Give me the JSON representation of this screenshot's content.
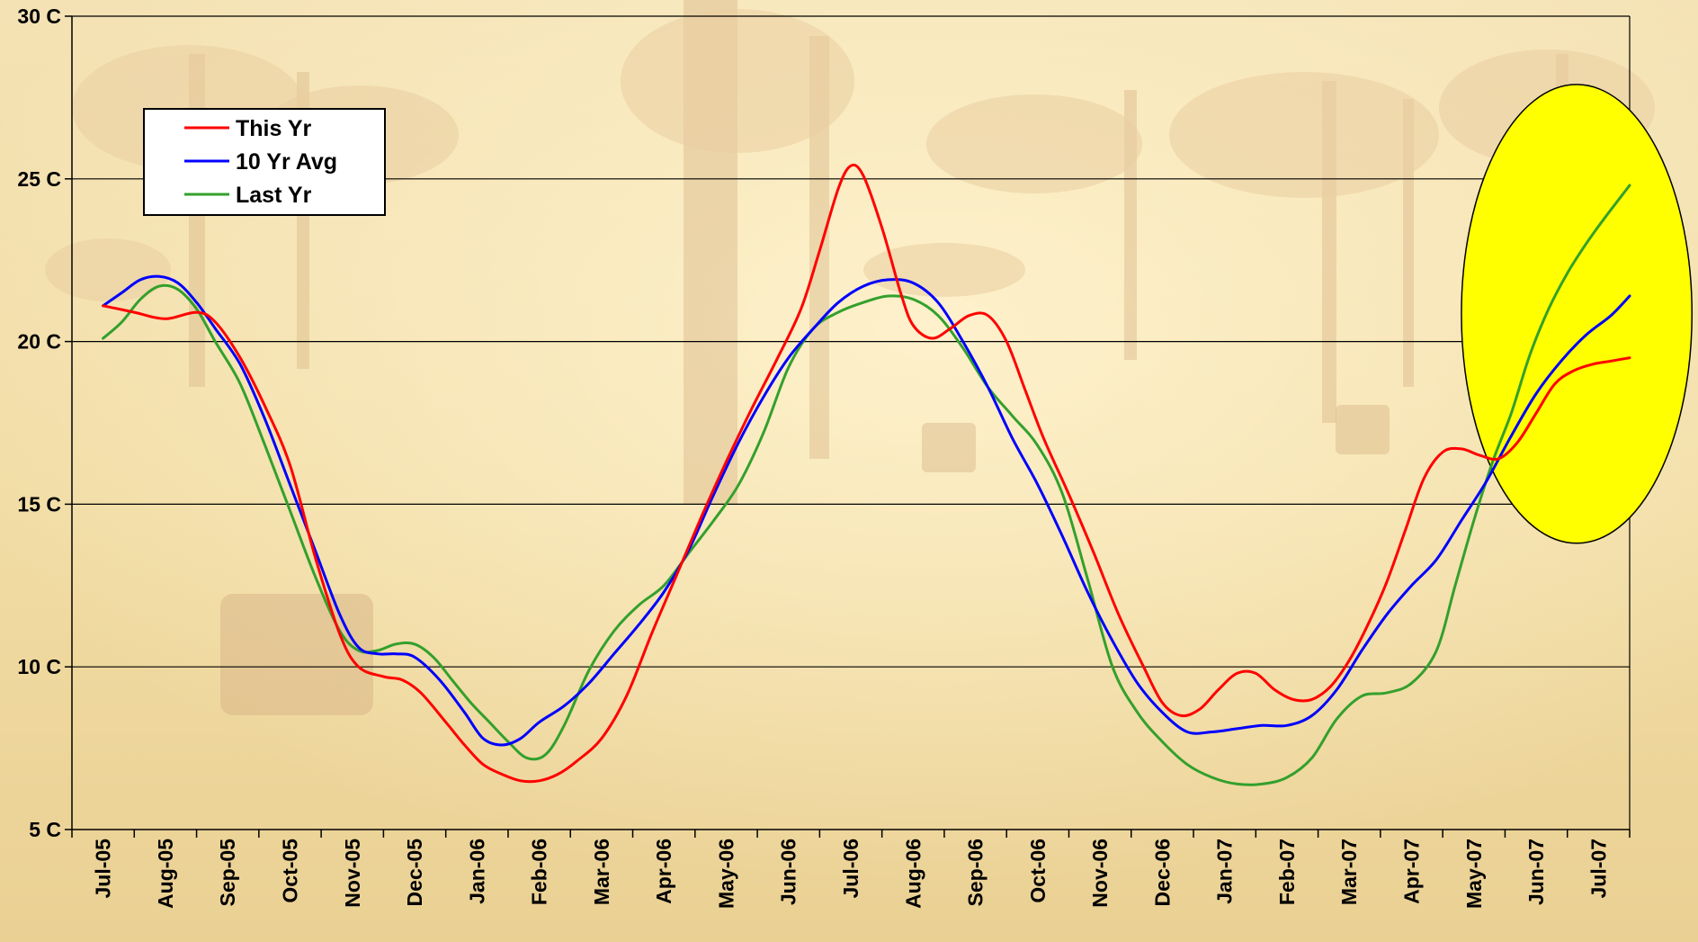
{
  "chart_data": {
    "type": "line",
    "title": "",
    "xlabel": "",
    "ylabel": "",
    "ylim": [
      5,
      30
    ],
    "y_tick_labels": [
      "5 C",
      "10 C",
      "15 C",
      "20 C",
      "25 C",
      "30 C"
    ],
    "y_tick_values": [
      5,
      10,
      15,
      20,
      25,
      30
    ],
    "categories": [
      "Jul-05",
      "Aug-05",
      "Sep-05",
      "Oct-05",
      "Nov-05",
      "Dec-05",
      "Jan-06",
      "Feb-06",
      "Mar-06",
      "Apr-06",
      "May-06",
      "Jun-06",
      "Jul-06",
      "Aug-06",
      "Sep-06",
      "Oct-06",
      "Nov-06",
      "Dec-06",
      "Jan-07",
      "Feb-07",
      "Mar-07",
      "Apr-07",
      "May-07",
      "Jun-07",
      "Jul-07"
    ],
    "grid": "horizontal",
    "legend_position": "top-left",
    "series": [
      {
        "name": "This Yr",
        "color": "#ff0000",
        "points": [
          [
            0,
            21.1
          ],
          [
            0.5,
            20.9
          ],
          [
            1,
            20.7
          ],
          [
            1.5,
            20.9
          ],
          [
            1.8,
            20.6
          ],
          [
            2.2,
            19.5
          ],
          [
            2.6,
            18.0
          ],
          [
            3,
            16.2
          ],
          [
            3.4,
            13.4
          ],
          [
            3.8,
            11.0
          ],
          [
            4.1,
            10.0
          ],
          [
            4.5,
            9.7
          ],
          [
            4.8,
            9.6
          ],
          [
            5.1,
            9.2
          ],
          [
            5.5,
            8.3
          ],
          [
            5.8,
            7.6
          ],
          [
            6.1,
            7.0
          ],
          [
            6.4,
            6.7
          ],
          [
            6.7,
            6.5
          ],
          [
            7.0,
            6.5
          ],
          [
            7.3,
            6.7
          ],
          [
            7.6,
            7.1
          ],
          [
            8.0,
            7.8
          ],
          [
            8.4,
            9.1
          ],
          [
            8.8,
            11.0
          ],
          [
            9.2,
            12.8
          ],
          [
            9.6,
            14.6
          ],
          [
            10.0,
            16.3
          ],
          [
            10.4,
            17.9
          ],
          [
            10.8,
            19.4
          ],
          [
            11.2,
            21.0
          ],
          [
            11.5,
            22.8
          ],
          [
            11.8,
            24.7
          ],
          [
            12.0,
            25.4
          ],
          [
            12.2,
            25.1
          ],
          [
            12.5,
            23.5
          ],
          [
            12.8,
            21.5
          ],
          [
            13.0,
            20.5
          ],
          [
            13.3,
            20.1
          ],
          [
            13.6,
            20.4
          ],
          [
            13.9,
            20.8
          ],
          [
            14.2,
            20.8
          ],
          [
            14.5,
            20.0
          ],
          [
            14.8,
            18.5
          ],
          [
            15.1,
            17.0
          ],
          [
            15.5,
            15.3
          ],
          [
            15.9,
            13.5
          ],
          [
            16.3,
            11.6
          ],
          [
            16.7,
            10.0
          ],
          [
            17.0,
            8.9
          ],
          [
            17.3,
            8.5
          ],
          [
            17.6,
            8.7
          ],
          [
            17.9,
            9.3
          ],
          [
            18.2,
            9.8
          ],
          [
            18.5,
            9.8
          ],
          [
            18.8,
            9.3
          ],
          [
            19.1,
            9.0
          ],
          [
            19.4,
            9.0
          ],
          [
            19.7,
            9.4
          ],
          [
            20.0,
            10.2
          ],
          [
            20.3,
            11.3
          ],
          [
            20.6,
            12.6
          ],
          [
            20.9,
            14.2
          ],
          [
            21.2,
            15.8
          ],
          [
            21.5,
            16.6
          ],
          [
            21.8,
            16.7
          ],
          [
            22.1,
            16.5
          ],
          [
            22.4,
            16.4
          ],
          [
            22.7,
            16.9
          ],
          [
            23.0,
            17.8
          ],
          [
            23.3,
            18.7
          ],
          [
            23.6,
            19.1
          ],
          [
            23.9,
            19.3
          ],
          [
            24.2,
            19.4
          ],
          [
            24.5,
            19.5
          ]
        ]
      },
      {
        "name": "10 Yr Avg",
        "color": "#0000ff",
        "points": [
          [
            0,
            21.1
          ],
          [
            0.3,
            21.5
          ],
          [
            0.6,
            21.9
          ],
          [
            0.9,
            22.0
          ],
          [
            1.2,
            21.8
          ],
          [
            1.5,
            21.2
          ],
          [
            1.8,
            20.4
          ],
          [
            2.2,
            19.3
          ],
          [
            2.6,
            17.6
          ],
          [
            3,
            15.6
          ],
          [
            3.4,
            13.6
          ],
          [
            3.8,
            11.6
          ],
          [
            4.1,
            10.6
          ],
          [
            4.4,
            10.4
          ],
          [
            4.7,
            10.4
          ],
          [
            5.0,
            10.3
          ],
          [
            5.4,
            9.6
          ],
          [
            5.8,
            8.6
          ],
          [
            6.1,
            7.8
          ],
          [
            6.4,
            7.6
          ],
          [
            6.7,
            7.8
          ],
          [
            7.0,
            8.3
          ],
          [
            7.4,
            8.8
          ],
          [
            7.8,
            9.5
          ],
          [
            8.2,
            10.4
          ],
          [
            8.6,
            11.3
          ],
          [
            9.0,
            12.3
          ],
          [
            9.4,
            13.6
          ],
          [
            9.8,
            15.3
          ],
          [
            10.2,
            16.9
          ],
          [
            10.6,
            18.3
          ],
          [
            11.0,
            19.5
          ],
          [
            11.4,
            20.4
          ],
          [
            11.8,
            21.2
          ],
          [
            12.2,
            21.7
          ],
          [
            12.6,
            21.9
          ],
          [
            13.0,
            21.8
          ],
          [
            13.4,
            21.2
          ],
          [
            13.8,
            20.0
          ],
          [
            14.2,
            18.6
          ],
          [
            14.6,
            17.0
          ],
          [
            15.0,
            15.6
          ],
          [
            15.4,
            14.0
          ],
          [
            15.8,
            12.3
          ],
          [
            16.2,
            10.8
          ],
          [
            16.6,
            9.5
          ],
          [
            17.0,
            8.6
          ],
          [
            17.4,
            8.0
          ],
          [
            17.8,
            8.0
          ],
          [
            18.2,
            8.1
          ],
          [
            18.6,
            8.2
          ],
          [
            19.0,
            8.2
          ],
          [
            19.4,
            8.5
          ],
          [
            19.8,
            9.3
          ],
          [
            20.2,
            10.5
          ],
          [
            20.6,
            11.6
          ],
          [
            21.0,
            12.5
          ],
          [
            21.4,
            13.3
          ],
          [
            21.8,
            14.5
          ],
          [
            22.2,
            15.7
          ],
          [
            22.6,
            17.1
          ],
          [
            23.0,
            18.4
          ],
          [
            23.4,
            19.4
          ],
          [
            23.8,
            20.2
          ],
          [
            24.2,
            20.8
          ],
          [
            24.5,
            21.4
          ]
        ]
      },
      {
        "name": "Last Yr",
        "color": "#33a02c",
        "points": [
          [
            0,
            20.1
          ],
          [
            0.3,
            20.6
          ],
          [
            0.6,
            21.3
          ],
          [
            0.9,
            21.7
          ],
          [
            1.2,
            21.6
          ],
          [
            1.5,
            21.0
          ],
          [
            1.8,
            20.0
          ],
          [
            2.2,
            18.7
          ],
          [
            2.6,
            16.8
          ],
          [
            3,
            14.8
          ],
          [
            3.4,
            12.8
          ],
          [
            3.8,
            11.1
          ],
          [
            4.1,
            10.5
          ],
          [
            4.4,
            10.5
          ],
          [
            4.7,
            10.7
          ],
          [
            5.0,
            10.7
          ],
          [
            5.3,
            10.3
          ],
          [
            5.6,
            9.6
          ],
          [
            5.9,
            8.9
          ],
          [
            6.2,
            8.3
          ],
          [
            6.5,
            7.7
          ],
          [
            6.8,
            7.2
          ],
          [
            7.1,
            7.3
          ],
          [
            7.4,
            8.2
          ],
          [
            7.8,
            9.9
          ],
          [
            8.2,
            11.1
          ],
          [
            8.6,
            11.9
          ],
          [
            9.0,
            12.5
          ],
          [
            9.4,
            13.5
          ],
          [
            9.8,
            14.5
          ],
          [
            10.2,
            15.6
          ],
          [
            10.6,
            17.2
          ],
          [
            11.0,
            19.2
          ],
          [
            11.4,
            20.4
          ],
          [
            11.8,
            20.9
          ],
          [
            12.2,
            21.2
          ],
          [
            12.6,
            21.4
          ],
          [
            13.0,
            21.3
          ],
          [
            13.4,
            20.8
          ],
          [
            13.8,
            19.8
          ],
          [
            14.2,
            18.6
          ],
          [
            14.6,
            17.7
          ],
          [
            15.0,
            16.8
          ],
          [
            15.4,
            15.3
          ],
          [
            15.8,
            12.7
          ],
          [
            16.2,
            10.0
          ],
          [
            16.6,
            8.6
          ],
          [
            17.0,
            7.7
          ],
          [
            17.4,
            7.0
          ],
          [
            17.8,
            6.6
          ],
          [
            18.2,
            6.4
          ],
          [
            18.6,
            6.4
          ],
          [
            19.0,
            6.6
          ],
          [
            19.4,
            7.2
          ],
          [
            19.8,
            8.4
          ],
          [
            20.2,
            9.1
          ],
          [
            20.6,
            9.2
          ],
          [
            21.0,
            9.5
          ],
          [
            21.4,
            10.5
          ],
          [
            21.7,
            12.5
          ],
          [
            22.0,
            14.5
          ],
          [
            22.3,
            16.3
          ],
          [
            22.6,
            17.8
          ],
          [
            22.9,
            19.6
          ],
          [
            23.2,
            21.0
          ],
          [
            23.5,
            22.1
          ],
          [
            23.8,
            23.0
          ],
          [
            24.1,
            23.8
          ],
          [
            24.5,
            24.8
          ]
        ]
      }
    ],
    "annotations": [
      {
        "shape": "ellipse",
        "fill": "#ffff00",
        "stroke": "#000000",
        "x_center": 23.65,
        "y_center": 20.85,
        "x_radius": 1.85,
        "y_radius": 7.05
      }
    ],
    "background": "faded orchard photograph"
  }
}
